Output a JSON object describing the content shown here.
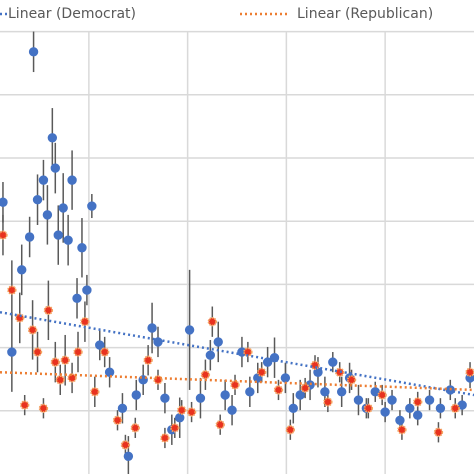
{
  "chart_data": {
    "type": "scatter",
    "xlim": [
      0.1,
      4.9
    ],
    "ylim": [
      0,
      7.5
    ],
    "xgrid": [
      1,
      2,
      3,
      4
    ],
    "ygrid": [
      1,
      2,
      3,
      4,
      5,
      6,
      7
    ],
    "grid": true,
    "legend": "top",
    "series": [
      {
        "color": "#4472c4",
        "edge": "#4472c4",
        "x": [
          0.13,
          0.22,
          0.32,
          0.4,
          0.44,
          0.48,
          0.54,
          0.58,
          0.63,
          0.66,
          0.69,
          0.74,
          0.79,
          0.83,
          0.88,
          0.93,
          0.98,
          1.03,
          1.11,
          1.21,
          1.34,
          1.4,
          1.48,
          1.55,
          1.64,
          1.7,
          1.77,
          1.84,
          1.92,
          2.02,
          2.13,
          2.23,
          2.31,
          2.38,
          2.45,
          2.55,
          2.63,
          2.71,
          2.81,
          2.88,
          2.99,
          3.07,
          3.14,
          3.24,
          3.32,
          3.39,
          3.47,
          3.56,
          3.64,
          3.73,
          3.81,
          3.9,
          4.0,
          4.07,
          4.15,
          4.25,
          4.33,
          4.45,
          4.56,
          4.66,
          4.78,
          4.86
        ],
        "values": [
          4.3,
          1.93,
          3.23,
          3.75,
          6.68,
          4.34,
          4.65,
          4.1,
          5.32,
          4.84,
          3.78,
          4.21,
          3.7,
          4.65,
          2.78,
          3.58,
          2.91,
          4.24,
          2.04,
          1.61,
          1.04,
          0.28,
          1.25,
          1.49,
          2.31,
          2.09,
          1.2,
          0.7,
          0.89,
          2.28,
          1.2,
          1.88,
          2.09,
          1.25,
          1.01,
          1.93,
          1.3,
          1.52,
          1.77,
          1.84,
          1.52,
          1.04,
          1.25,
          1.41,
          1.61,
          1.3,
          1.77,
          1.3,
          1.52,
          1.17,
          1.04,
          1.3,
          0.98,
          1.17,
          0.85,
          1.04,
          0.93,
          1.17,
          1.04,
          1.33,
          1.09,
          1.52
        ],
        "errors": [
          0.32,
          0.63,
          0.4,
          0.32,
          0.32,
          0.4,
          0.32,
          0.47,
          0.47,
          0.4,
          0.47,
          0.55,
          0.4,
          0.47,
          0.32,
          0.47,
          0.24,
          0.19,
          0.24,
          0.24,
          0.24,
          0.32,
          0.24,
          0.24,
          0.4,
          0.24,
          0.24,
          0.24,
          0.32,
          0.95,
          0.32,
          0.24,
          0.32,
          0.24,
          0.24,
          0.24,
          0.24,
          0.24,
          0.24,
          0.32,
          0.24,
          0.24,
          0.24,
          0.24,
          0.24,
          0.24,
          0.16,
          0.24,
          0.24,
          0.24,
          0.16,
          0.16,
          0.16,
          0.16,
          0.16,
          0.16,
          0.16,
          0.16,
          0.16,
          0.16,
          0.16,
          0.16
        ]
      },
      {
        "color": "#e8321f",
        "edge": "#f4a460",
        "x": [
          0.13,
          0.22,
          0.3,
          0.35,
          0.43,
          0.48,
          0.54,
          0.59,
          0.66,
          0.71,
          0.76,
          0.83,
          0.89,
          0.96,
          1.06,
          1.16,
          1.29,
          1.37,
          1.47,
          1.6,
          1.7,
          1.77,
          1.87,
          1.94,
          2.04,
          2.18,
          2.25,
          2.33,
          2.48,
          2.61,
          2.75,
          2.92,
          3.04,
          3.19,
          3.29,
          3.42,
          3.54,
          3.66,
          3.83,
          3.97,
          4.17,
          4.33,
          4.54,
          4.71,
          4.86
        ],
        "values": [
          3.78,
          2.91,
          2.47,
          1.09,
          2.28,
          1.93,
          1.04,
          2.59,
          1.77,
          1.49,
          1.8,
          1.52,
          1.93,
          2.41,
          1.3,
          1.93,
          0.85,
          0.46,
          0.73,
          1.8,
          1.49,
          0.57,
          0.73,
          1.01,
          0.98,
          1.57,
          2.41,
          0.78,
          1.41,
          1.93,
          1.61,
          1.33,
          0.7,
          1.36,
          1.72,
          1.14,
          1.61,
          1.49,
          1.04,
          1.25,
          0.7,
          1.14,
          0.66,
          1.04,
          1.61
        ],
        "errors": [
          0.32,
          0.47,
          0.4,
          0.16,
          0.47,
          0.32,
          0.16,
          0.47,
          0.32,
          0.24,
          0.4,
          0.24,
          0.32,
          0.32,
          0.24,
          0.24,
          0.16,
          0.16,
          0.16,
          0.24,
          0.16,
          0.16,
          0.16,
          0.16,
          0.16,
          0.24,
          0.24,
          0.16,
          0.16,
          0.16,
          0.16,
          0.16,
          0.16,
          0.16,
          0.16,
          0.16,
          0.16,
          0.16,
          0.16,
          0.16,
          0.16,
          0.16,
          0.16,
          0.16,
          0.16
        ]
      }
    ],
    "trendlines": [
      {
        "name": "Linear (Democrat)",
        "color": "#4472c4",
        "x": [
          0.1,
          4.9
        ],
        "values": [
          2.56,
          1.25
        ]
      },
      {
        "name": "Linear (Republican)",
        "color": "#ed7d31",
        "x": [
          0.1,
          4.9
        ],
        "values": [
          1.61,
          1.33
        ]
      }
    ]
  }
}
